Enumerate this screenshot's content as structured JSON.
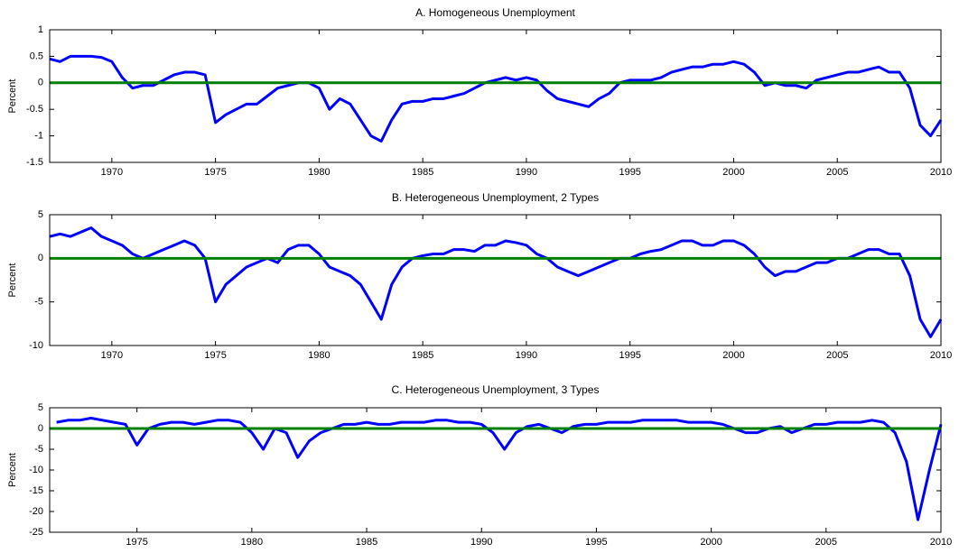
{
  "chart_data": [
    {
      "type": "line",
      "title": "A. Homogeneous Unemployment",
      "y_label": "Percent",
      "x": [
        1967,
        1967.5,
        1968,
        1968.5,
        1969,
        1969.5,
        1970,
        1970.5,
        1971,
        1971.5,
        1972,
        1972.5,
        1973,
        1973.5,
        1974,
        1974.5,
        1975,
        1975.5,
        1976,
        1976.5,
        1977,
        1977.5,
        1978,
        1978.5,
        1979,
        1979.5,
        1980,
        1980.5,
        1981,
        1981.5,
        1982,
        1982.5,
        1983,
        1983.5,
        1984,
        1984.5,
        1985,
        1985.5,
        1986,
        1986.5,
        1987,
        1987.5,
        1988,
        1988.5,
        1989,
        1989.5,
        1990,
        1990.5,
        1991,
        1991.5,
        1992,
        1992.5,
        1993,
        1993.5,
        1994,
        1994.5,
        1995,
        1995.5,
        1996,
        1996.5,
        1997,
        1997.5,
        1998,
        1998.5,
        1999,
        1999.5,
        2000,
        2000.5,
        2001,
        2001.5,
        2002,
        2002.5,
        2003,
        2003.5,
        2004,
        2004.5,
        2005,
        2005.5,
        2006,
        2006.5,
        2007,
        2007.5,
        2008,
        2008.5,
        2009,
        2009.5,
        2010
      ],
      "values": [
        0.45,
        0.4,
        0.5,
        0.5,
        0.5,
        0.48,
        0.4,
        0.1,
        -0.1,
        -0.05,
        -0.05,
        0.05,
        0.15,
        0.2,
        0.2,
        0.15,
        -0.75,
        -0.6,
        -0.5,
        -0.4,
        -0.4,
        -0.25,
        -0.1,
        -0.05,
        0,
        0,
        -0.1,
        -0.5,
        -0.3,
        -0.4,
        -0.7,
        -1.0,
        -1.1,
        -0.7,
        -0.4,
        -0.35,
        -0.35,
        -0.3,
        -0.3,
        -0.25,
        -0.2,
        -0.1,
        0,
        0.05,
        0.1,
        0.05,
        0.1,
        0.05,
        -0.15,
        -0.3,
        -0.35,
        -0.4,
        -0.45,
        -0.3,
        -0.2,
        0,
        0.05,
        0.05,
        0.05,
        0.1,
        0.2,
        0.25,
        0.3,
        0.3,
        0.35,
        0.35,
        0.4,
        0.35,
        0.2,
        -0.05,
        0,
        -0.05,
        -0.05,
        -0.1,
        0.05,
        0.1,
        0.15,
        0.2,
        0.2,
        0.25,
        0.3,
        0.2,
        0.2,
        -0.1,
        -0.8,
        -1.0,
        -0.7
      ],
      "color": "#0000ff",
      "reference_line": {
        "value": 0,
        "color": "#008000"
      },
      "xlim": [
        1967,
        2010
      ],
      "xticks": [
        1970,
        1975,
        1980,
        1985,
        1990,
        1995,
        2000,
        2005,
        2010
      ],
      "ylim": [
        -1.5,
        1
      ],
      "yticks": [
        -1.5,
        -1,
        -0.5,
        0,
        0.5,
        1
      ]
    },
    {
      "type": "line",
      "title": "B. Heterogeneous Unemployment, 2 Types",
      "y_label": "Percent",
      "x": [
        1967,
        1967.5,
        1968,
        1968.5,
        1969,
        1969.5,
        1970,
        1970.5,
        1971,
        1971.5,
        1972,
        1972.5,
        1973,
        1973.5,
        1974,
        1974.5,
        1975,
        1975.5,
        1976,
        1976.5,
        1977,
        1977.5,
        1978,
        1978.5,
        1979,
        1979.5,
        1980,
        1980.5,
        1981,
        1981.5,
        1982,
        1982.5,
        1983,
        1983.5,
        1984,
        1984.5,
        1985,
        1985.5,
        1986,
        1986.5,
        1987,
        1987.5,
        1988,
        1988.5,
        1989,
        1989.5,
        1990,
        1990.5,
        1991,
        1991.5,
        1992,
        1992.5,
        1993,
        1993.5,
        1994,
        1994.5,
        1995,
        1995.5,
        1996,
        1996.5,
        1997,
        1997.5,
        1998,
        1998.5,
        1999,
        1999.5,
        2000,
        2000.5,
        2001,
        2001.5,
        2002,
        2002.5,
        2003,
        2003.5,
        2004,
        2004.5,
        2005,
        2005.5,
        2006,
        2006.5,
        2007,
        2007.5,
        2008,
        2008.5,
        2009,
        2009.5,
        2010
      ],
      "values": [
        2.5,
        2.8,
        2.5,
        3,
        3.5,
        2.5,
        2,
        1.5,
        0.5,
        0,
        0.5,
        1,
        1.5,
        2,
        1.5,
        0,
        -5,
        -3,
        -2,
        -1,
        -0.5,
        0,
        -0.5,
        1,
        1.5,
        1.5,
        0.5,
        -1,
        -1.5,
        -2,
        -3,
        -5,
        -7,
        -3,
        -1,
        0,
        0.3,
        0.5,
        0.5,
        1,
        1,
        0.8,
        1.5,
        1.5,
        2,
        1.8,
        1.5,
        0.5,
        0,
        -1,
        -1.5,
        -2,
        -1.5,
        -1,
        -0.5,
        0,
        0,
        0.5,
        0.8,
        1,
        1.5,
        2,
        2,
        1.5,
        1.5,
        2,
        2,
        1.5,
        0.5,
        -1,
        -2,
        -1.5,
        -1.5,
        -1,
        -0.5,
        -0.5,
        0,
        0,
        0.5,
        1,
        1,
        0.5,
        0.5,
        -2,
        -7,
        -9,
        -7
      ],
      "color": "#0000ff",
      "reference_line": {
        "value": 0,
        "color": "#008000"
      },
      "xlim": [
        1967,
        2010
      ],
      "xticks": [
        1970,
        1975,
        1980,
        1985,
        1990,
        1995,
        2000,
        2005,
        2010
      ],
      "ylim": [
        -10,
        5
      ],
      "yticks": [
        -10,
        -5,
        0,
        5
      ]
    },
    {
      "type": "line",
      "title": "C. Heterogeneous Unemployment, 3 Types",
      "y_label": "Percent",
      "x": [
        1971.5,
        1972,
        1972.5,
        1973,
        1973.5,
        1974,
        1974.5,
        1975,
        1975.5,
        1976,
        1976.5,
        1977,
        1977.5,
        1978,
        1978.5,
        1979,
        1979.5,
        1980,
        1980.5,
        1981,
        1981.5,
        1982,
        1982.5,
        1983,
        1983.5,
        1984,
        1984.5,
        1985,
        1985.5,
        1986,
        1986.5,
        1987,
        1987.5,
        1988,
        1988.5,
        1989,
        1989.5,
        1990,
        1990.5,
        1991,
        1991.5,
        1992,
        1992.5,
        1993,
        1993.5,
        1994,
        1994.5,
        1995,
        1995.5,
        1996,
        1996.5,
        1997,
        1997.5,
        1998,
        1998.5,
        1999,
        1999.5,
        2000,
        2000.5,
        2001,
        2001.5,
        2002,
        2002.5,
        2003,
        2003.5,
        2004,
        2004.5,
        2005,
        2005.5,
        2006,
        2006.5,
        2007,
        2007.5,
        2008,
        2008.5,
        2009,
        2009.5,
        2010
      ],
      "values": [
        1.5,
        2,
        2,
        2.5,
        2,
        1.5,
        1,
        -4,
        0,
        1,
        1.5,
        1.5,
        1,
        1.5,
        2,
        2,
        1.5,
        -1,
        -5,
        0,
        -1,
        -7,
        -3,
        -1,
        0,
        1,
        1,
        1.5,
        1,
        1,
        1.5,
        1.5,
        1.5,
        2,
        2,
        1.5,
        1.5,
        1,
        -1,
        -5,
        -1,
        0.5,
        1,
        0,
        -1,
        0.5,
        1,
        1,
        1.5,
        1.5,
        1.5,
        2,
        2,
        2,
        2,
        1.5,
        1.5,
        1.5,
        1,
        0,
        -1,
        -1,
        0,
        0.5,
        -1,
        0,
        1,
        1,
        1.5,
        1.5,
        1.5,
        2,
        1.5,
        -1,
        -8,
        -22,
        -10,
        1
      ],
      "color": "#0000ff",
      "reference_line": {
        "value": 0,
        "color": "#008000"
      },
      "xlim": [
        1971.2,
        2010
      ],
      "xticks": [
        1975,
        1980,
        1985,
        1990,
        1995,
        2000,
        2005,
        2010
      ],
      "ylim": [
        -25,
        5
      ],
      "yticks": [
        -25,
        -20,
        -15,
        -10,
        -5,
        0,
        5
      ]
    }
  ]
}
